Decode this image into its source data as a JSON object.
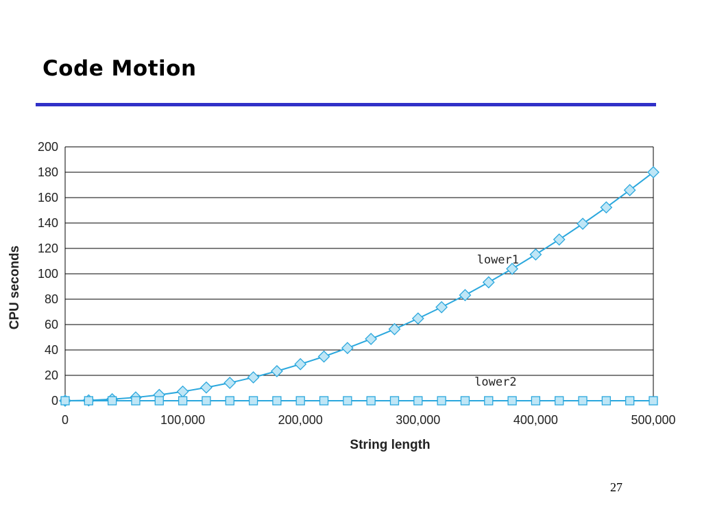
{
  "slide": {
    "title": "Code Motion",
    "page_number": "27"
  },
  "colors": {
    "rule": "#3030c8",
    "series": "#2aa7dd",
    "marker_fill": "#bfe6f6",
    "grid": "#000000"
  },
  "chart_data": {
    "type": "line",
    "title": "",
    "xlabel": "String length",
    "ylabel": "CPU seconds",
    "xlim": [
      0,
      500000
    ],
    "ylim": [
      0,
      200
    ],
    "xticks": [
      0,
      100000,
      200000,
      300000,
      400000,
      500000
    ],
    "xtick_labels": [
      "0",
      "100,000",
      "200,000",
      "300,000",
      "400,000",
      "500,000"
    ],
    "yticks": [
      0,
      20,
      40,
      60,
      80,
      100,
      120,
      140,
      160,
      180,
      200
    ],
    "ytick_labels": [
      "0",
      "20",
      "40",
      "60",
      "80",
      "100",
      "120",
      "140",
      "160",
      "180",
      "200"
    ],
    "grid": "horizontal",
    "series": [
      {
        "name": "lower1",
        "marker": "diamond",
        "x": [
          0,
          20000,
          40000,
          60000,
          80000,
          100000,
          120000,
          140000,
          160000,
          180000,
          200000,
          220000,
          240000,
          260000,
          280000,
          300000,
          320000,
          340000,
          360000,
          380000,
          400000,
          420000,
          440000,
          460000,
          480000,
          500000
        ],
        "y": [
          0,
          0.3,
          1.2,
          2.6,
          4.6,
          7.2,
          10.4,
          14.1,
          18.4,
          23.3,
          28.8,
          34.8,
          41.5,
          48.7,
          56.4,
          64.8,
          73.7,
          83.2,
          93.3,
          103.9,
          115.2,
          127.0,
          139.4,
          152.3,
          165.9,
          180.0
        ],
        "label_anchor": [
          350000,
          108
        ]
      },
      {
        "name": "lower2",
        "marker": "square",
        "x": [
          0,
          20000,
          40000,
          60000,
          80000,
          100000,
          120000,
          140000,
          160000,
          180000,
          200000,
          220000,
          240000,
          260000,
          280000,
          300000,
          320000,
          340000,
          360000,
          380000,
          400000,
          420000,
          440000,
          460000,
          480000,
          500000
        ],
        "y": [
          0,
          0,
          0,
          0,
          0,
          0,
          0,
          0,
          0,
          0,
          0,
          0,
          0,
          0,
          0,
          0,
          0,
          0,
          0,
          0,
          0,
          0,
          0,
          0,
          0,
          0
        ],
        "label_anchor": [
          348000,
          12
        ]
      }
    ]
  }
}
